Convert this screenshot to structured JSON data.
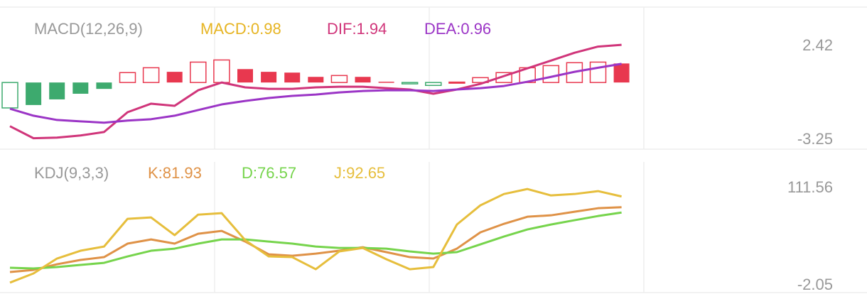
{
  "chart_data": [
    {
      "type": "macd",
      "title": "MACD(12,26,9)",
      "categories": [
        null,
        null,
        null,
        null,
        null,
        null,
        null,
        null,
        null,
        null,
        null,
        null,
        null,
        null,
        null,
        null,
        null,
        null,
        null,
        null,
        null,
        null,
        null,
        null,
        null,
        null,
        null
      ],
      "ylim": [
        -3.25,
        2.42
      ],
      "yticks": [
        -3.25,
        2.42
      ],
      "series": [
        {
          "name": "MACD:0.98",
          "kind": "bar",
          "color": "#e6b422",
          "up_color": "#e8384f",
          "down_color": "#3daa6e",
          "values": [
            -1.31,
            -1.16,
            -0.87,
            -0.58,
            -0.33,
            0.51,
            0.76,
            0.55,
            1.05,
            1.16,
            0.69,
            0.55,
            0.51,
            0.29,
            0.36,
            0.29,
            0.04,
            -0.07,
            -0.15,
            0.02,
            0.25,
            0.51,
            0.76,
            0.87,
            1.02,
            1.05,
            0.98
          ]
        },
        {
          "name": "DIF:1.94",
          "kind": "line",
          "color": "#d0357a",
          "values": [
            -2.25,
            -2.87,
            -2.84,
            -2.73,
            -2.55,
            -1.53,
            -1.09,
            -1.2,
            -0.4,
            0,
            -0.25,
            -0.33,
            -0.33,
            -0.25,
            -0.22,
            -0.22,
            -0.29,
            -0.36,
            -0.58,
            -0.36,
            -0.07,
            0.33,
            0.73,
            1.13,
            1.53,
            1.85,
            1.94
          ]
        },
        {
          "name": "DEA:0.96",
          "kind": "line",
          "color": "#9b35c6",
          "values": [
            -1.35,
            -1.71,
            -1.93,
            -2.0,
            -2.07,
            -1.96,
            -1.89,
            -1.71,
            -1.42,
            -1.13,
            -0.95,
            -0.8,
            -0.69,
            -0.62,
            -0.51,
            -0.44,
            -0.4,
            -0.4,
            -0.44,
            -0.36,
            -0.29,
            -0.18,
            0.04,
            0.29,
            0.55,
            0.76,
            0.96
          ]
        }
      ]
    },
    {
      "type": "line",
      "title": "KDJ(9,3,3)",
      "categories": [
        null,
        null,
        null,
        null,
        null,
        null,
        null,
        null,
        null,
        null,
        null,
        null,
        null,
        null,
        null,
        null,
        null,
        null,
        null,
        null,
        null,
        null,
        null,
        null,
        null,
        null,
        null
      ],
      "ylim": [
        -2.05,
        111.56
      ],
      "yticks": [
        -2.05,
        111.56
      ],
      "series": [
        {
          "name": "K:81.93",
          "kind": "line",
          "color": "#df9247",
          "values": [
            17.1,
            19.2,
            24.9,
            29.2,
            32,
            45.5,
            49.7,
            45.5,
            55.4,
            58.2,
            47.6,
            34.8,
            33.4,
            35.5,
            38.4,
            41.9,
            37,
            32,
            30.6,
            40.5,
            56.8,
            65.3,
            72.4,
            73.8,
            77.4,
            80.9,
            81.93
          ]
        },
        {
          "name": "D:76.57",
          "kind": "line",
          "color": "#76d44c",
          "values": [
            21.4,
            20.7,
            22.1,
            24.2,
            26.3,
            32.7,
            38.4,
            40.5,
            45.5,
            49.7,
            49.7,
            47.6,
            45.5,
            42.6,
            41.2,
            41.2,
            40.5,
            37.7,
            35.5,
            37,
            44.8,
            52.6,
            59.7,
            64.6,
            68.9,
            73.1,
            76.57
          ]
        },
        {
          "name": "J:92.65",
          "kind": "line",
          "color": "#e6be3c",
          "values": [
            6.5,
            15.7,
            30.6,
            38.4,
            42.6,
            70.3,
            71.7,
            54,
            74.5,
            76,
            49,
            32.7,
            32,
            19.9,
            37.7,
            41.2,
            29.9,
            19.9,
            22.1,
            64.6,
            83.8,
            95.1,
            100.1,
            93.7,
            95.1,
            98,
            92.65
          ]
        }
      ]
    }
  ]
}
